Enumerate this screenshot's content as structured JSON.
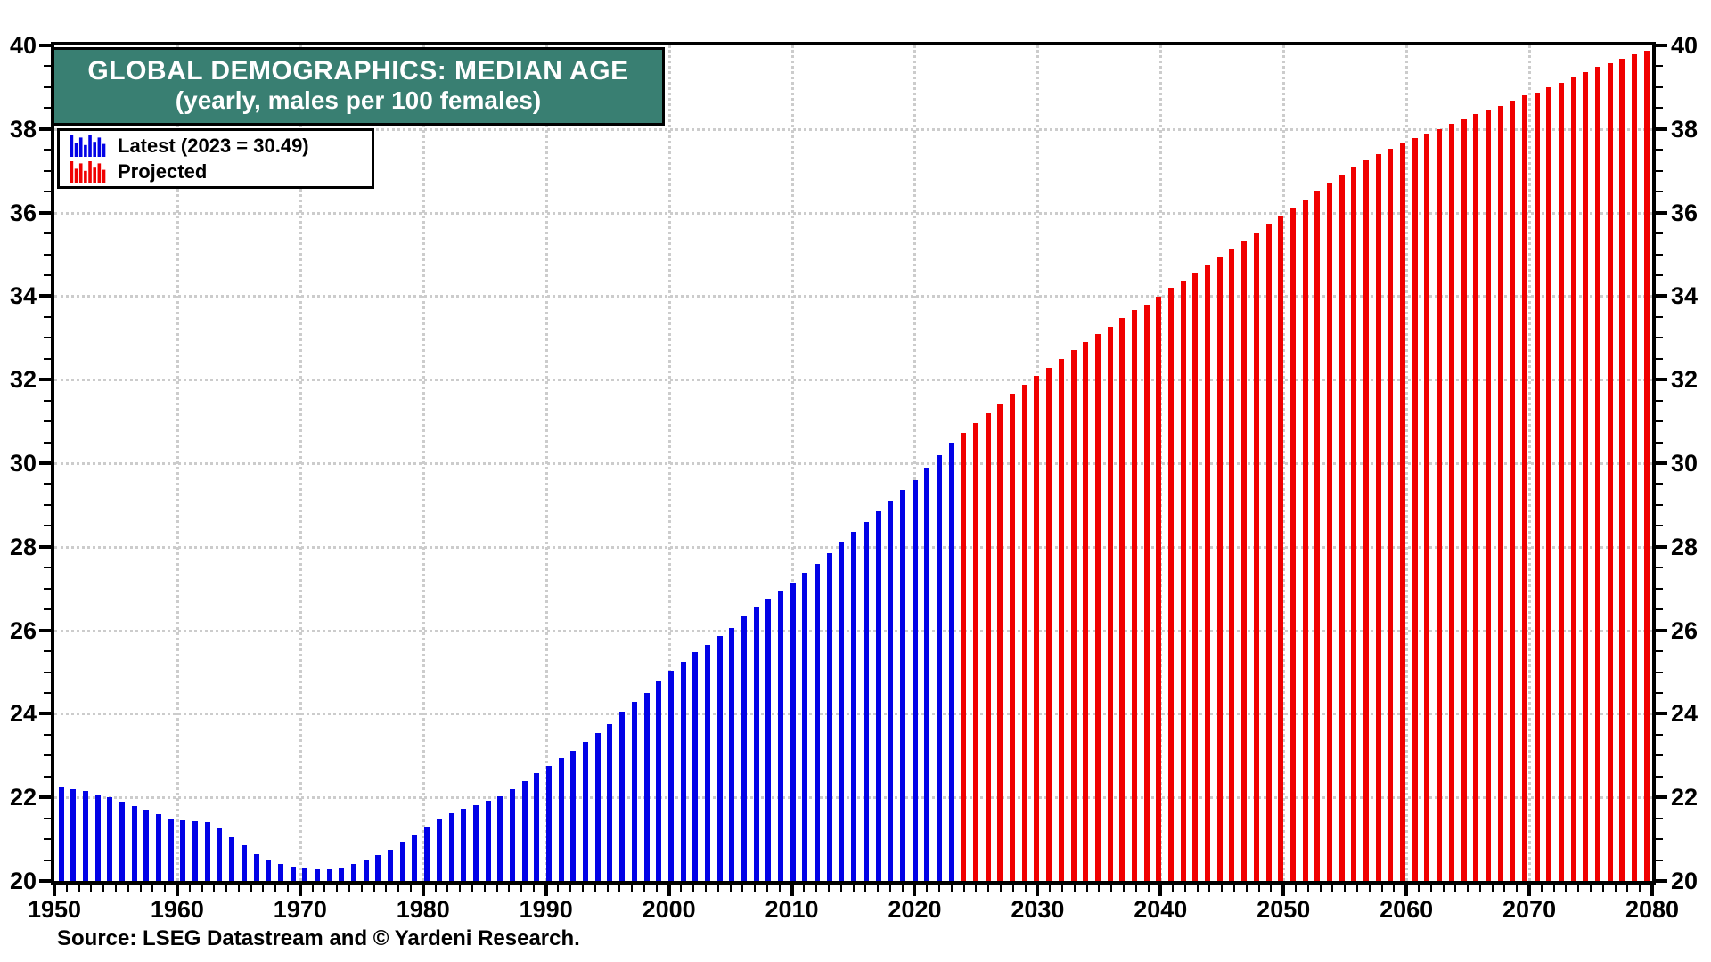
{
  "header": {
    "title": "GLOBAL DEMOGRAPHICS: MEDIAN AGE",
    "subtitle": "(yearly, males per 100 females)",
    "box_bg_color": "#397f72",
    "box_text_color": "#ffffff"
  },
  "legend": {
    "items": [
      {
        "label": "Latest (2023 = 30.49)",
        "color": "#0202e6",
        "swatch": "mini-bars-icon"
      },
      {
        "label": "Projected",
        "color": "#f00000",
        "swatch": "mini-bars-icon"
      }
    ]
  },
  "footer": {
    "source": "Source: LSEG Datastream and © Yardeni Research."
  },
  "chart_data": {
    "type": "bar",
    "title": "GLOBAL DEMOGRAPHICS: MEDIAN AGE",
    "subtitle": "(yearly, males per 100 females)",
    "xlim": [
      1950,
      2080
    ],
    "ylim": [
      20,
      40
    ],
    "y_major_ticks": [
      20,
      22,
      24,
      26,
      28,
      30,
      32,
      34,
      36,
      38,
      40
    ],
    "y_minor_tick_step": 0.5,
    "x_major_ticks": [
      1950,
      1960,
      1970,
      1980,
      1990,
      2000,
      2010,
      2020,
      2030,
      2040,
      2050,
      2060,
      2070,
      2080
    ],
    "x_minor_tick_step": 1,
    "grid": "dotted, both axes, light gray",
    "grid_color": "#cccccc",
    "legend_position": "top-left",
    "axis_labels_both_sides": true,
    "highlight_note": "2023 = 30.49",
    "series": [
      {
        "name": "Latest (2023 = 30.49)",
        "color": "#0202e6",
        "start_year": 1950,
        "end_year": 2023,
        "values": [
          22.25,
          22.2,
          22.15,
          22.05,
          22.0,
          21.9,
          21.8,
          21.7,
          21.6,
          21.5,
          21.45,
          21.42,
          21.4,
          21.25,
          21.05,
          20.85,
          20.65,
          20.5,
          20.4,
          20.35,
          20.3,
          20.27,
          20.28,
          20.32,
          20.4,
          20.5,
          20.62,
          20.75,
          20.93,
          21.1,
          21.28,
          21.48,
          21.62,
          21.72,
          21.82,
          21.92,
          22.02,
          22.2,
          22.38,
          22.57,
          22.76,
          22.95,
          23.11,
          23.33,
          23.55,
          23.76,
          24.05,
          24.29,
          24.5,
          24.78,
          25.03,
          25.24,
          25.47,
          25.64,
          25.86,
          26.05,
          26.35,
          26.55,
          26.75,
          26.95,
          27.15,
          27.38,
          27.6,
          27.85,
          28.1,
          28.35,
          28.6,
          28.85,
          29.1,
          29.35,
          29.6,
          29.9,
          30.2,
          30.49
        ]
      },
      {
        "name": "Projected",
        "color": "#f00000",
        "start_year": 2024,
        "end_year": 2080,
        "values": [
          30.72,
          30.96,
          31.2,
          31.42,
          31.66,
          31.87,
          32.1,
          32.29,
          32.5,
          32.7,
          32.89,
          33.09,
          33.26,
          33.47,
          33.66,
          33.8,
          33.99,
          34.19,
          34.37,
          34.55,
          34.74,
          34.93,
          35.11,
          35.31,
          35.5,
          35.73,
          35.92,
          36.11,
          36.29,
          36.52,
          36.71,
          36.9,
          37.07,
          37.24,
          37.4,
          37.52,
          37.67,
          37.79,
          37.88,
          38.0,
          38.12,
          38.23,
          38.35,
          38.46,
          38.56,
          38.67,
          38.8,
          38.88,
          39.0,
          39.11,
          39.23,
          39.35,
          39.48,
          39.57,
          39.69,
          39.78,
          39.87
        ]
      }
    ]
  }
}
